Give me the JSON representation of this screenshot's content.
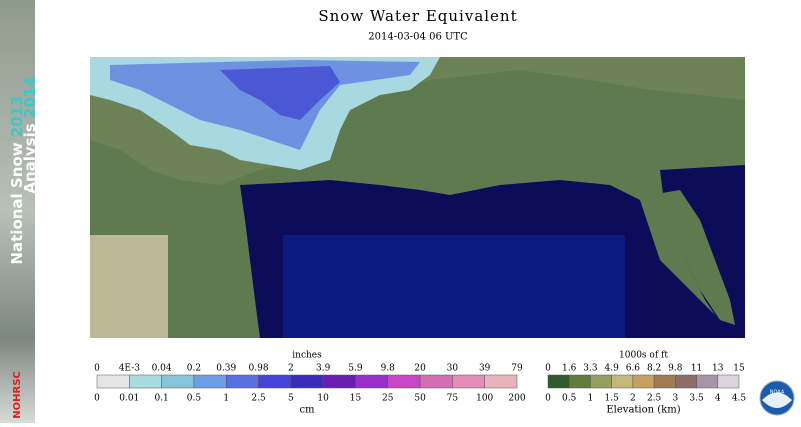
{
  "header": {
    "title": "Snow Water Equivalent",
    "subtitle": "2014-03-04 06 UTC"
  },
  "sidebar": {
    "line1": "National Snow",
    "year1": "2013",
    "line2": "Analysis",
    "year2": "2014",
    "org": "NOHRSC"
  },
  "swe_legend": {
    "unit_top": "inches",
    "unit_bottom": "cm",
    "top_labels": [
      "0",
      "4E-3",
      "0.04",
      "0.2",
      "0.39",
      "0.98",
      "2",
      "3.9",
      "5.9",
      "9.8",
      "20",
      "30",
      "39",
      "79"
    ],
    "bottom_labels": [
      "0",
      "0.01",
      "0.1",
      "0.5",
      "1",
      "2.5",
      "5",
      "10",
      "15",
      "25",
      "50",
      "75",
      "100",
      "200"
    ],
    "colors": [
      "#e6e6e6",
      "#a8dce2",
      "#86c4dc",
      "#6e9ee6",
      "#5a70e0",
      "#4444d8",
      "#3c2cbc",
      "#6a1eb0",
      "#9a2ec8",
      "#c646c6",
      "#d66cb4",
      "#e48cb6",
      "#e8b4bc"
    ]
  },
  "elevation_legend": {
    "unit_top": "1000s of ft",
    "title": "Elevation (km)",
    "top_labels": [
      "0",
      "1.6",
      "3.3",
      "4.9",
      "6.6",
      "8.2",
      "9.8",
      "11",
      "13",
      "15"
    ],
    "bottom_labels": [
      "0",
      "0.5",
      "1",
      "1.5",
      "2",
      "2.5",
      "3",
      "3.5",
      "4",
      "4.5"
    ],
    "colors": [
      "#2e5a2e",
      "#5e7c3c",
      "#94a060",
      "#c4b878",
      "#c8a060",
      "#a07a52",
      "#8c6e66",
      "#a894a8",
      "#dcd4dc"
    ]
  },
  "logo": "NOAA"
}
